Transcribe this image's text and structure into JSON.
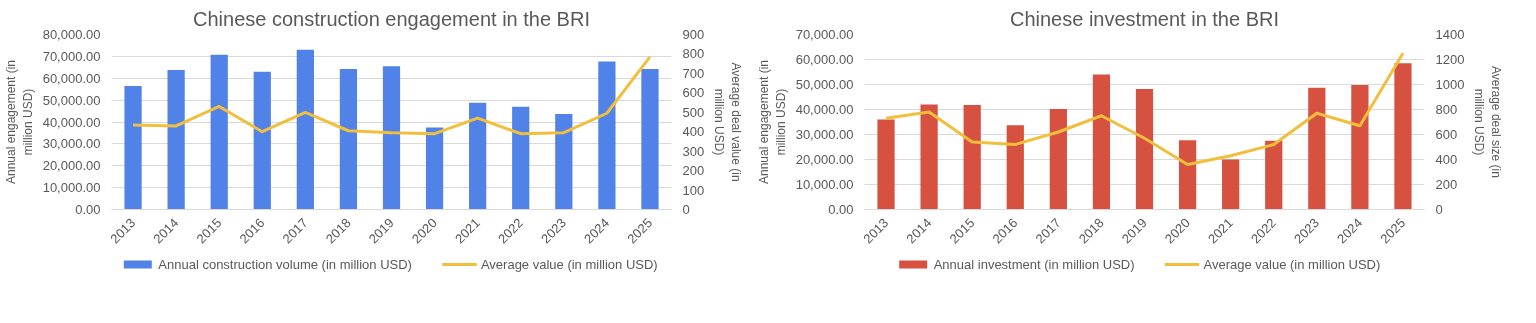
{
  "chart_data": [
    {
      "type": "bar",
      "title": "Chinese construction engagement in the BRI",
      "ylabel": "Annual engagement (in million USD)",
      "y2label": "Average deal value (in million USD)",
      "categories": [
        "2013",
        "2014",
        "2015",
        "2016",
        "2017",
        "2018",
        "2019",
        "2020",
        "2021",
        "2022",
        "2023",
        "2024",
        "2025"
      ],
      "series": [
        {
          "name": "Annual construction volume (in million USD)",
          "color": "#5082e8",
          "values": [
            56500,
            63800,
            70800,
            63000,
            73000,
            64200,
            65500,
            37500,
            48800,
            47000,
            43700,
            67700,
            64200
          ]
        },
        {
          "name": "Average value (in million USD)",
          "type": "line",
          "axis": "y2",
          "color": "#f2bf3c",
          "values": [
            435,
            430,
            530,
            400,
            500,
            405,
            395,
            390,
            470,
            390,
            395,
            495,
            785
          ]
        }
      ],
      "ylim": [
        0,
        80000
      ],
      "yticks": [
        {
          "value": 0,
          "label": "0.00"
        },
        {
          "value": 10000,
          "label": "10,000.00"
        },
        {
          "value": 20000,
          "label": "20,000.00"
        },
        {
          "value": 30000,
          "label": "30,000.00"
        },
        {
          "value": 40000,
          "label": "40,000.00"
        },
        {
          "value": 50000,
          "label": "50,000.00"
        },
        {
          "value": 60000,
          "label": "60,000.00"
        },
        {
          "value": 70000,
          "label": "70,000.00"
        },
        {
          "value": 80000,
          "label": "80,000.00"
        }
      ],
      "y2lim": [
        0,
        900
      ],
      "y2ticks": [
        0,
        100,
        200,
        300,
        400,
        500,
        600,
        700,
        800,
        900
      ],
      "grid": "y",
      "legend": "bottom"
    },
    {
      "type": "bar",
      "title": "Chinese investment in the BRI",
      "ylabel": "Annual engagement (in million USD)",
      "y2label": "Average deal size (in million USD)",
      "categories": [
        "2013",
        "2014",
        "2015",
        "2016",
        "2017",
        "2018",
        "2019",
        "2020",
        "2021",
        "2022",
        "2023",
        "2024",
        "2025"
      ],
      "series": [
        {
          "name": "Annual investment (in million USD)",
          "color": "#d65140",
          "values": [
            36000,
            42000,
            41800,
            33700,
            40200,
            54000,
            48200,
            27700,
            20000,
            27500,
            48700,
            49800,
            58500
          ]
        },
        {
          "name": "Average value (in million USD)",
          "type": "line",
          "axis": "y2",
          "color": "#f2bf3c",
          "values": [
            730,
            780,
            540,
            520,
            620,
            750,
            570,
            360,
            430,
            520,
            770,
            670,
            1250
          ]
        }
      ],
      "ylim": [
        0,
        70000
      ],
      "yticks": [
        {
          "value": 0,
          "label": "0.00"
        },
        {
          "value": 10000,
          "label": "10,000.00"
        },
        {
          "value": 20000,
          "label": "20,000.00"
        },
        {
          "value": 30000,
          "label": "30,000.00"
        },
        {
          "value": 40000,
          "label": "40,000.00"
        },
        {
          "value": 50000,
          "label": "50,000.00"
        },
        {
          "value": 60000,
          "label": "60,000.00"
        },
        {
          "value": 70000,
          "label": "70,000.00"
        }
      ],
      "y2lim": [
        0,
        1400
      ],
      "y2ticks": [
        0,
        200,
        400,
        600,
        800,
        1000,
        1200,
        1400
      ],
      "grid": "y",
      "legend": "bottom"
    }
  ]
}
